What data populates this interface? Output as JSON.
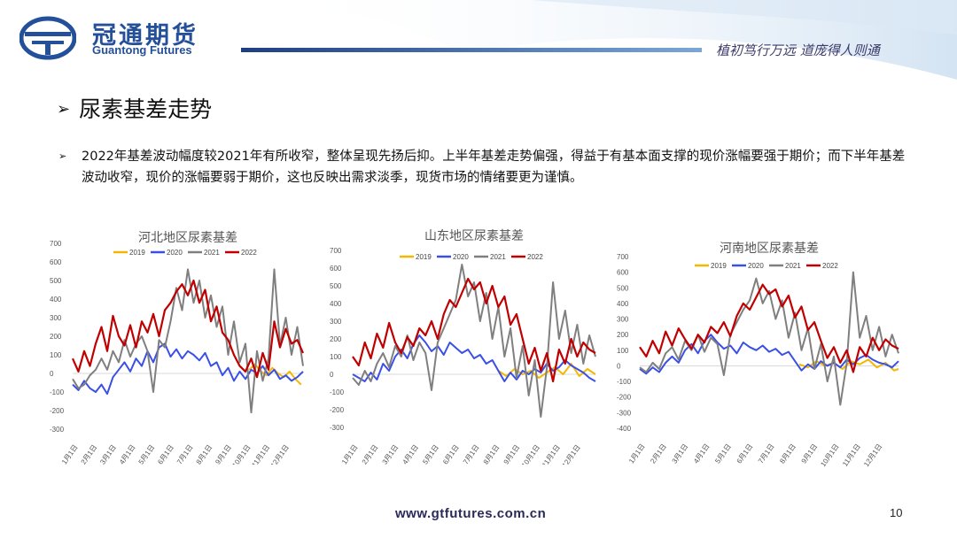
{
  "header": {
    "brand_cn": "冠通期货",
    "brand_en": "Guantong Futures",
    "slogan": "植初笃行万远  道庞得人则通"
  },
  "title": "尿素基差走势",
  "paragraph": "2022年基差波动幅度较2021年有所收窄，整体呈现先扬后抑。上半年基差走势偏强，得益于有基本面支撑的现价涨幅要强于期价；而下半年基差波动收窄，现价的涨幅要弱于期价，这也反映出需求淡季，现货市场的情绪要更为谨慎。",
  "footer": {
    "url": "www.gtfutures.com.cn",
    "page": "10"
  },
  "colors": {
    "2019": "#f5b800",
    "2020": "#3a4fe6",
    "2021": "#7f7f7f",
    "2022": "#c00000",
    "brand": "#24509a"
  },
  "chart_data": [
    {
      "type": "line",
      "title": "河北地区尿素基差",
      "x_ticks": [
        "1月1日",
        "2月1日",
        "3月1日",
        "4月1日",
        "5月1日",
        "6月1日",
        "7月1日",
        "8月1日",
        "9月1日",
        "10月1日",
        "11月1日",
        "12月1日"
      ],
      "ylim": [
        -300,
        700
      ],
      "y_ticks": [
        -300,
        -200,
        -100,
        0,
        100,
        200,
        300,
        400,
        500,
        600,
        700
      ],
      "series": [
        {
          "name": "2019",
          "x": [
            9.2,
            9.5,
            9.8,
            10.1,
            10.4,
            10.7,
            11.0,
            11.3,
            11.6,
            11.9
          ],
          "values": [
            20,
            50,
            10,
            -10,
            30,
            0,
            -20,
            10,
            -30,
            -60
          ]
        },
        {
          "name": "2020",
          "x": [
            0,
            0.3,
            0.6,
            0.9,
            1.2,
            1.5,
            1.8,
            2.1,
            2.4,
            2.7,
            3.0,
            3.3,
            3.6,
            3.9,
            4.2,
            4.5,
            4.8,
            5.1,
            5.4,
            5.7,
            6.0,
            6.3,
            6.6,
            6.9,
            7.2,
            7.5,
            7.8,
            8.1,
            8.4,
            8.7,
            9.0,
            9.3,
            9.6,
            9.9,
            10.2,
            10.5,
            10.8,
            11.1,
            11.4,
            11.7,
            12.0
          ],
          "values": [
            -60,
            -90,
            -40,
            -80,
            -100,
            -60,
            -110,
            -20,
            20,
            60,
            10,
            80,
            40,
            120,
            60,
            140,
            160,
            90,
            130,
            80,
            120,
            100,
            70,
            110,
            40,
            60,
            -10,
            30,
            -40,
            10,
            -30,
            20,
            0,
            40,
            -10,
            20,
            -30,
            -10,
            -40,
            -20,
            10
          ]
        },
        {
          "name": "2021",
          "x": [
            0,
            0.3,
            0.6,
            0.9,
            1.2,
            1.5,
            1.8,
            2.1,
            2.4,
            2.7,
            3.0,
            3.3,
            3.6,
            3.9,
            4.2,
            4.5,
            4.8,
            5.1,
            5.4,
            5.7,
            6.0,
            6.3,
            6.6,
            6.9,
            7.2,
            7.5,
            7.8,
            8.1,
            8.4,
            8.7,
            9.0,
            9.3,
            9.6,
            9.9,
            10.2,
            10.5,
            10.8,
            11.1,
            11.4,
            11.7,
            12.0
          ],
          "values": [
            -30,
            -80,
            -60,
            -10,
            20,
            80,
            20,
            120,
            60,
            180,
            90,
            160,
            200,
            120,
            -100,
            180,
            140,
            280,
            460,
            340,
            560,
            380,
            500,
            300,
            420,
            250,
            360,
            100,
            280,
            60,
            160,
            -210,
            120,
            -40,
            80,
            560,
            150,
            300,
            100,
            250,
            40
          ]
        },
        {
          "name": "2022",
          "x": [
            0,
            0.3,
            0.6,
            0.9,
            1.2,
            1.5,
            1.8,
            2.1,
            2.4,
            2.7,
            3.0,
            3.3,
            3.6,
            3.9,
            4.2,
            4.5,
            4.8,
            5.1,
            5.4,
            5.7,
            6.0,
            6.3,
            6.6,
            6.9,
            7.2,
            7.5,
            7.8,
            8.1,
            8.4,
            8.7,
            9.0,
            9.3,
            9.6,
            9.9,
            10.2,
            10.5,
            10.8,
            11.1,
            11.4,
            11.7,
            12.0
          ],
          "values": [
            80,
            10,
            120,
            40,
            160,
            250,
            120,
            310,
            200,
            150,
            260,
            140,
            280,
            220,
            320,
            200,
            340,
            380,
            440,
            480,
            420,
            500,
            380,
            450,
            280,
            360,
            220,
            180,
            100,
            40,
            10,
            80,
            -20,
            110,
            20,
            280,
            140,
            240,
            160,
            180,
            110
          ]
        }
      ]
    },
    {
      "type": "line",
      "title": "山东地区尿素基差",
      "x_ticks": [
        "1月1日",
        "2月1日",
        "3月1日",
        "4月1日",
        "5月1日",
        "6月1日",
        "7月1日",
        "8月1日",
        "9月1日",
        "10月1日",
        "11月1日",
        "12月1日"
      ],
      "ylim": [
        -300,
        700
      ],
      "y_ticks": [
        -300,
        -200,
        -100,
        0,
        100,
        200,
        300,
        400,
        500,
        600,
        700
      ],
      "series": [
        {
          "name": "2019",
          "x": [
            7.2,
            7.6,
            8.0,
            8.4,
            8.8,
            9.2,
            9.6,
            10.0,
            10.4,
            10.8,
            11.2,
            11.6,
            12.0
          ],
          "values": [
            20,
            -10,
            30,
            0,
            20,
            -20,
            10,
            40,
            0,
            60,
            -10,
            30,
            0
          ]
        },
        {
          "name": "2020",
          "x": [
            0,
            0.3,
            0.6,
            0.9,
            1.2,
            1.5,
            1.8,
            2.1,
            2.4,
            2.7,
            3.0,
            3.3,
            3.6,
            3.9,
            4.2,
            4.5,
            4.8,
            5.1,
            5.4,
            5.7,
            6.0,
            6.3,
            6.6,
            6.9,
            7.2,
            7.5,
            7.8,
            8.1,
            8.4,
            8.7,
            9.0,
            9.3,
            9.6,
            9.9,
            10.2,
            10.5,
            10.8,
            11.1,
            11.4,
            11.7,
            12.0
          ],
          "values": [
            0,
            -20,
            -40,
            10,
            -30,
            60,
            20,
            100,
            140,
            90,
            170,
            220,
            180,
            130,
            160,
            110,
            180,
            150,
            120,
            140,
            90,
            110,
            60,
            80,
            20,
            -40,
            10,
            -30,
            20,
            0,
            30,
            10,
            60,
            20,
            40,
            80,
            50,
            30,
            10,
            -20,
            -40
          ]
        },
        {
          "name": "2021",
          "x": [
            0,
            0.3,
            0.6,
            0.9,
            1.2,
            1.5,
            1.8,
            2.1,
            2.4,
            2.7,
            3.0,
            3.3,
            3.6,
            3.9,
            4.2,
            4.5,
            4.8,
            5.1,
            5.4,
            5.7,
            6.0,
            6.3,
            6.6,
            6.9,
            7.2,
            7.5,
            7.8,
            8.1,
            8.4,
            8.7,
            9.0,
            9.3,
            9.6,
            9.9,
            10.2,
            10.5,
            10.8,
            11.1,
            11.4,
            11.7,
            12.0
          ],
          "values": [
            -20,
            -60,
            20,
            -40,
            60,
            120,
            40,
            160,
            100,
            220,
            80,
            180,
            120,
            -90,
            180,
            260,
            340,
            420,
            620,
            440,
            520,
            300,
            460,
            200,
            380,
            100,
            260,
            -20,
            160,
            -120,
            80,
            -240,
            40,
            520,
            200,
            360,
            120,
            280,
            60,
            220,
            100
          ]
        },
        {
          "name": "2022",
          "x": [
            0,
            0.3,
            0.6,
            0.9,
            1.2,
            1.5,
            1.8,
            2.1,
            2.4,
            2.7,
            3.0,
            3.3,
            3.6,
            3.9,
            4.2,
            4.5,
            4.8,
            5.1,
            5.4,
            5.7,
            6.0,
            6.3,
            6.6,
            6.9,
            7.2,
            7.5,
            7.8,
            8.1,
            8.4,
            8.7,
            9.0,
            9.3,
            9.6,
            9.9,
            10.2,
            10.5,
            10.8,
            11.1,
            11.4,
            11.7,
            12.0
          ],
          "values": [
            100,
            50,
            180,
            90,
            230,
            150,
            290,
            180,
            120,
            210,
            160,
            260,
            220,
            300,
            200,
            340,
            420,
            380,
            460,
            540,
            480,
            520,
            400,
            500,
            380,
            440,
            280,
            340,
            200,
            60,
            150,
            20,
            120,
            -40,
            140,
            60,
            200,
            100,
            180,
            140,
            120
          ]
        }
      ]
    },
    {
      "type": "line",
      "title": "河南地区尿素基差",
      "x_ticks": [
        "1月1日",
        "2月1日",
        "3月1日",
        "4月1日",
        "5月1日",
        "6月1日",
        "7月1日",
        "8月1日",
        "9月1日",
        "10月1日",
        "11月1日",
        "12月1日"
      ],
      "ylim": [
        -400,
        700
      ],
      "y_ticks": [
        -400,
        -300,
        -200,
        -100,
        0,
        100,
        200,
        300,
        400,
        500,
        600,
        700
      ],
      "series": [
        {
          "name": "2019",
          "x": [
            7.4,
            7.8,
            8.2,
            8.6,
            9.0,
            9.4,
            9.8,
            10.2,
            10.6,
            11.0,
            11.4,
            11.8,
            12.0
          ],
          "values": [
            10,
            -10,
            30,
            0,
            20,
            -20,
            30,
            10,
            40,
            -10,
            20,
            -30,
            -20
          ]
        },
        {
          "name": "2020",
          "x": [
            0,
            0.3,
            0.6,
            0.9,
            1.2,
            1.5,
            1.8,
            2.1,
            2.4,
            2.7,
            3.0,
            3.3,
            3.6,
            3.9,
            4.2,
            4.5,
            4.8,
            5.1,
            5.4,
            5.7,
            6.0,
            6.3,
            6.6,
            6.9,
            7.2,
            7.5,
            7.8,
            8.1,
            8.4,
            8.7,
            9.0,
            9.3,
            9.6,
            9.9,
            10.2,
            10.5,
            10.8,
            11.1,
            11.4,
            11.7,
            12.0
          ],
          "values": [
            -20,
            -50,
            -10,
            -40,
            20,
            60,
            20,
            100,
            140,
            80,
            160,
            200,
            150,
            110,
            130,
            80,
            150,
            120,
            100,
            130,
            90,
            110,
            70,
            90,
            30,
            -30,
            10,
            -20,
            30,
            0,
            20,
            -10,
            40,
            10,
            50,
            70,
            40,
            20,
            10,
            -10,
            30
          ]
        },
        {
          "name": "2021",
          "x": [
            0,
            0.3,
            0.6,
            0.9,
            1.2,
            1.5,
            1.8,
            2.1,
            2.4,
            2.7,
            3.0,
            3.3,
            3.6,
            3.9,
            4.2,
            4.5,
            4.8,
            5.1,
            5.4,
            5.7,
            6.0,
            6.3,
            6.6,
            6.9,
            7.2,
            7.5,
            7.8,
            8.1,
            8.4,
            8.7,
            9.0,
            9.3,
            9.6,
            9.9,
            10.2,
            10.5,
            10.8,
            11.1,
            11.4,
            11.7,
            12.0
          ],
          "values": [
            -10,
            -40,
            20,
            -20,
            80,
            120,
            40,
            160,
            100,
            200,
            90,
            180,
            140,
            -60,
            200,
            280,
            360,
            420,
            560,
            400,
            480,
            300,
            420,
            180,
            340,
            100,
            240,
            -20,
            140,
            -100,
            60,
            -250,
            20,
            600,
            180,
            320,
            100,
            250,
            60,
            200,
            80
          ]
        },
        {
          "name": "2022",
          "x": [
            0,
            0.3,
            0.6,
            0.9,
            1.2,
            1.5,
            1.8,
            2.1,
            2.4,
            2.7,
            3.0,
            3.3,
            3.6,
            3.9,
            4.2,
            4.5,
            4.8,
            5.1,
            5.4,
            5.7,
            6.0,
            6.3,
            6.6,
            6.9,
            7.2,
            7.5,
            7.8,
            8.1,
            8.4,
            8.7,
            9.0,
            9.3,
            9.6,
            9.9,
            10.2,
            10.5,
            10.8,
            11.1,
            11.4,
            11.7,
            12.0
          ],
          "values": [
            120,
            60,
            160,
            80,
            220,
            130,
            240,
            170,
            110,
            200,
            150,
            250,
            210,
            280,
            190,
            320,
            400,
            360,
            440,
            520,
            460,
            490,
            380,
            450,
            310,
            380,
            230,
            280,
            160,
            50,
            120,
            20,
            100,
            -40,
            120,
            60,
            180,
            100,
            170,
            130,
            110
          ]
        }
      ]
    }
  ]
}
